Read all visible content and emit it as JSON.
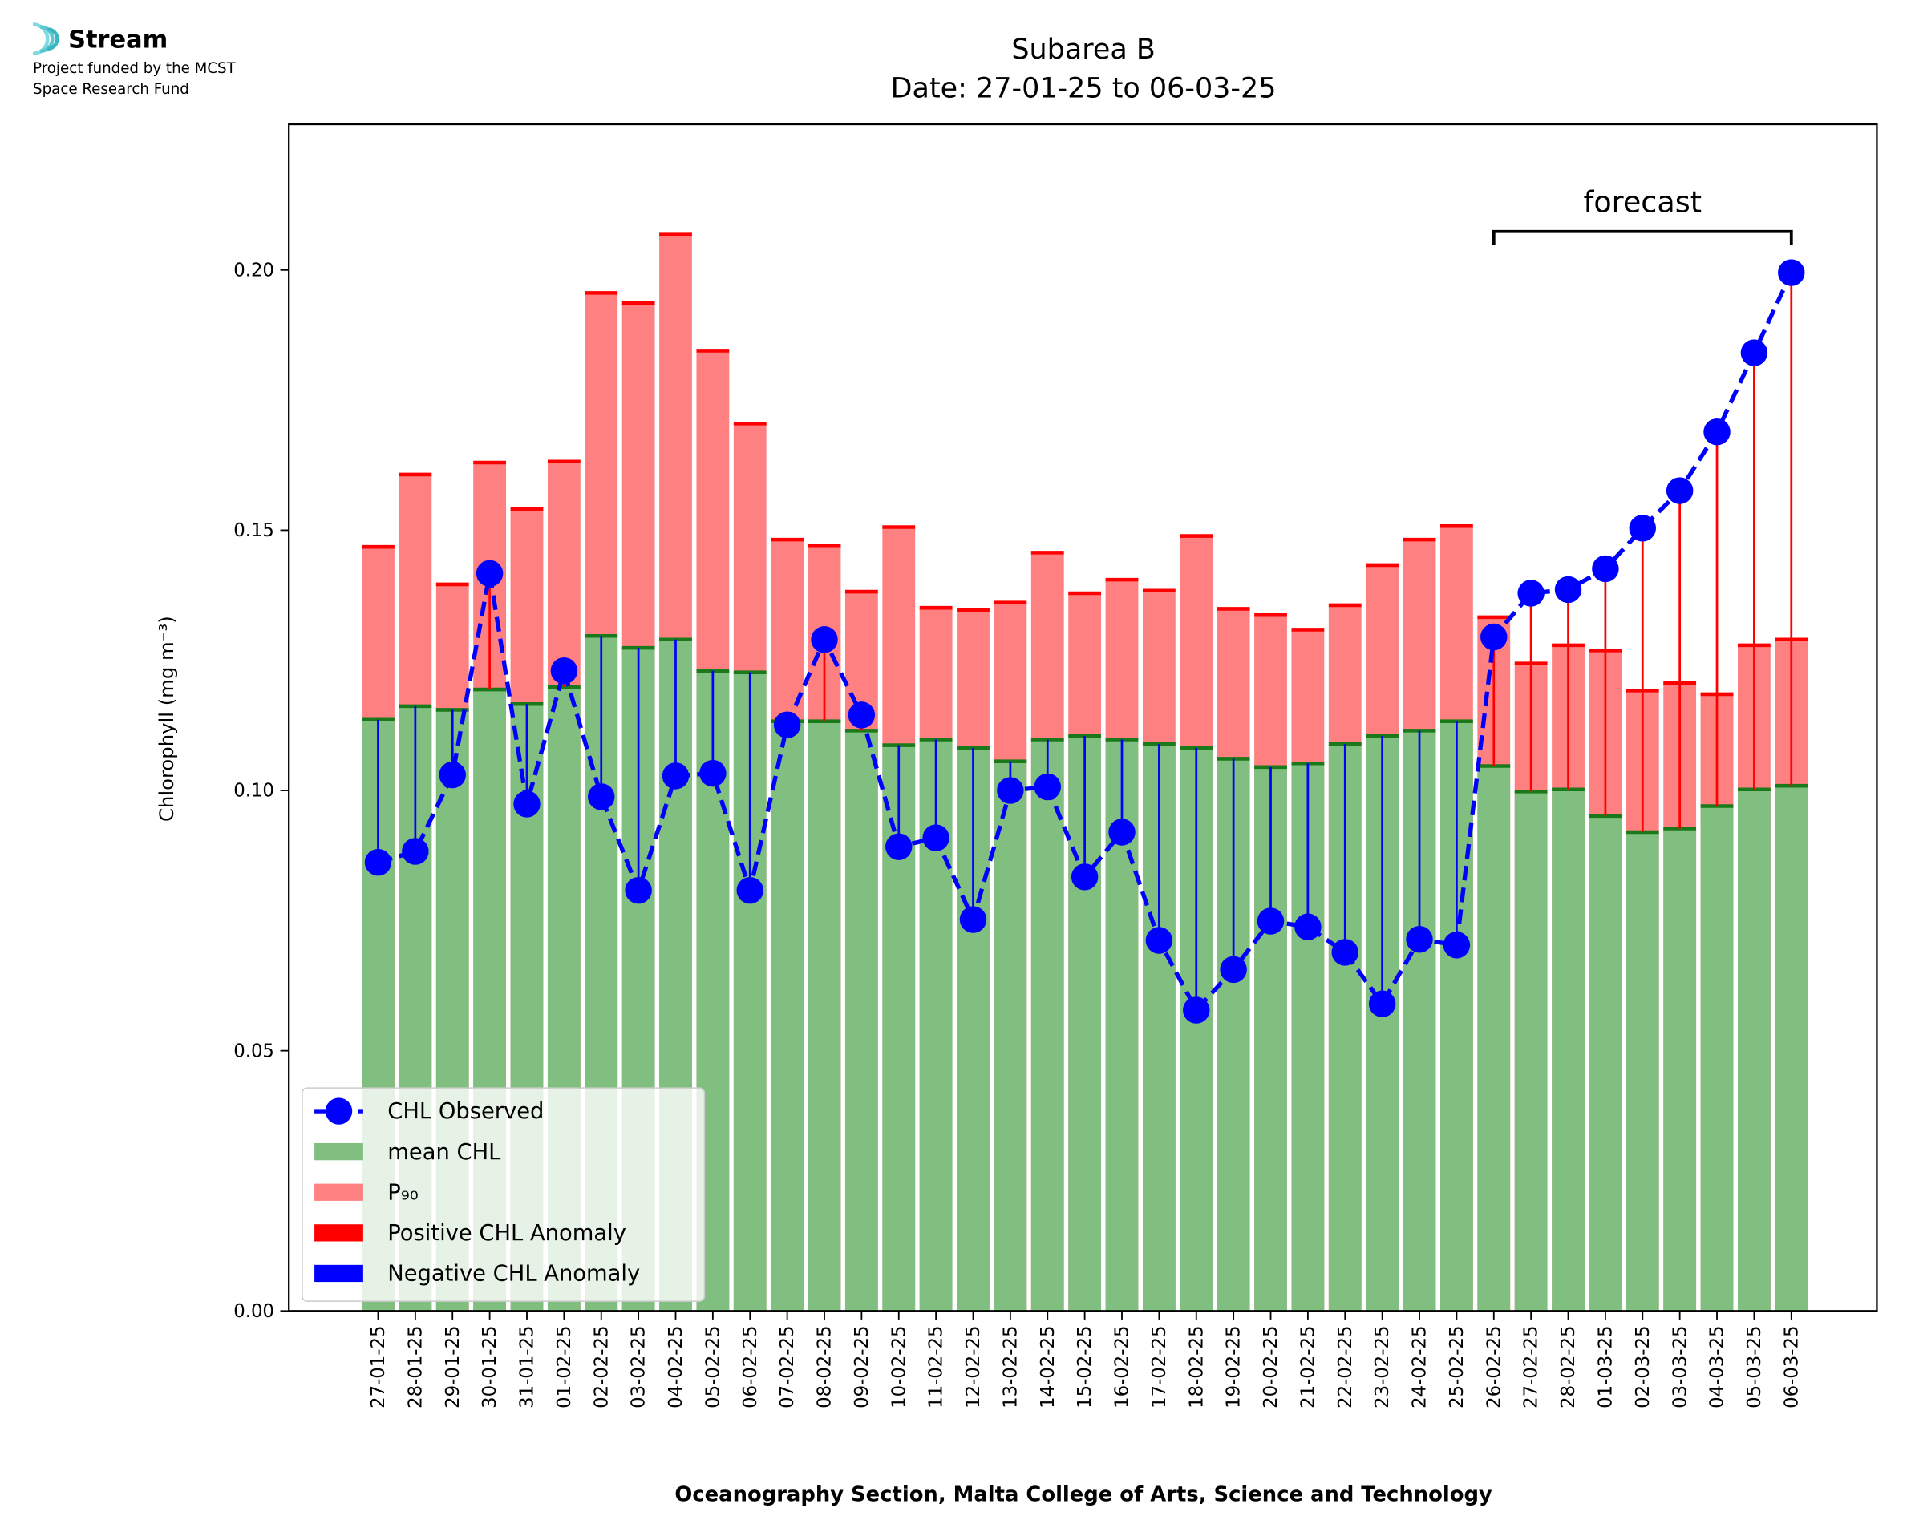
{
  "logo": {
    "name": "Stream",
    "lines": [
      "Project funded by the MCST",
      "Space Research Fund"
    ]
  },
  "chart_data": {
    "type": "bar",
    "title": [
      "Subarea B",
      "Date: 27-01-25 to 06-03-25"
    ],
    "x_label": "Oceanography Section, Malta College of Arts, Science and Technology",
    "y_label": "Chlorophyll (mg m⁻³)",
    "categories": [
      "27-01-25",
      "28-01-25",
      "29-01-25",
      "30-01-25",
      "31-01-25",
      "01-02-25",
      "02-02-25",
      "03-02-25",
      "04-02-25",
      "05-02-25",
      "06-02-25",
      "07-02-25",
      "08-02-25",
      "09-02-25",
      "10-02-25",
      "11-02-25",
      "12-02-25",
      "13-02-25",
      "14-02-25",
      "15-02-25",
      "16-02-25",
      "17-02-25",
      "18-02-25",
      "19-02-25",
      "20-02-25",
      "21-02-25",
      "22-02-25",
      "23-02-25",
      "24-02-25",
      "25-02-25",
      "26-02-25",
      "27-02-25",
      "28-02-25",
      "01-03-25",
      "02-03-25",
      "03-03-25",
      "04-03-25",
      "05-03-25",
      "06-03-25"
    ],
    "series": [
      {
        "name": "CHL Observed",
        "color": "#0000ff",
        "values": [
          0.0862,
          0.0883,
          0.103,
          0.1417,
          0.0974,
          0.123,
          0.0988,
          0.0808,
          0.1028,
          0.1033,
          0.0808,
          0.1126,
          0.129,
          0.1145,
          0.0892,
          0.0909,
          0.0752,
          0.1,
          0.1007,
          0.0834,
          0.092,
          0.0712,
          0.0578,
          0.0656,
          0.0749,
          0.0738,
          0.0689,
          0.059,
          0.0714,
          0.0703,
          0.1295,
          0.1379,
          0.1386,
          0.1426,
          0.1504,
          0.1576,
          0.1689,
          0.1841,
          0.1995
        ]
      },
      {
        "name": "mean CHL",
        "color": "#80bf80",
        "values": [
          0.1136,
          0.1162,
          0.1155,
          0.1194,
          0.1166,
          0.1199,
          0.1297,
          0.1274,
          0.129,
          0.123,
          0.1227,
          0.1133,
          0.1133,
          0.1115,
          0.1087,
          0.1098,
          0.1082,
          0.1056,
          0.1098,
          0.1105,
          0.1098,
          0.1089,
          0.1082,
          0.1061,
          0.1045,
          0.1052,
          0.1089,
          0.1105,
          0.1115,
          0.1133,
          0.1047,
          0.0998,
          0.1002,
          0.0951,
          0.092,
          0.0927,
          0.097,
          0.1002,
          0.1009
        ]
      },
      {
        "name": "P₉₀",
        "color": "#ff8080",
        "values": [
          0.1468,
          0.1607,
          0.1396,
          0.163,
          0.1541,
          0.1632,
          0.1956,
          0.1937,
          0.2068,
          0.1845,
          0.1705,
          0.1482,
          0.1471,
          0.1382,
          0.1506,
          0.1351,
          0.1347,
          0.1361,
          0.1457,
          0.1379,
          0.1405,
          0.1384,
          0.1489,
          0.1349,
          0.1337,
          0.1309,
          0.1356,
          0.1433,
          0.1482,
          0.1508,
          0.1333,
          0.1244,
          0.1279,
          0.1269,
          0.1192,
          0.1206,
          0.1185,
          0.1279,
          0.129
        ]
      }
    ],
    "anomaly_legend": [
      {
        "name": "Positive CHL Anomaly",
        "color": "#ff0000"
      },
      {
        "name": "Negative CHL Anomaly",
        "color": "#0000ff"
      }
    ],
    "forecast": {
      "label": "forecast",
      "from": "26-02-25",
      "to": "06-03-25"
    },
    "ylim": [
      0,
      0.228
    ],
    "yticks": [
      {
        "value": 0,
        "label": "0.00"
      },
      {
        "value": 0.05,
        "label": "0.05"
      },
      {
        "value": 0.1,
        "label": "0.10"
      },
      {
        "value": 0.15,
        "label": "0.15"
      },
      {
        "value": 0.2,
        "label": "0.20"
      }
    ],
    "legend": "lower left"
  }
}
